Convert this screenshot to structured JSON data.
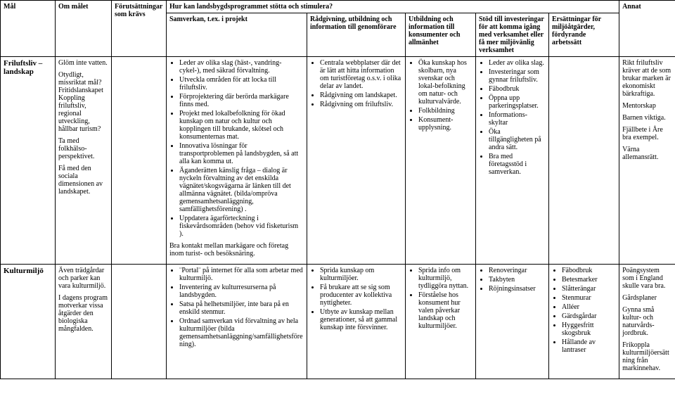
{
  "columns": {
    "c0": "Mål",
    "c1": "Om målet",
    "c2": "Förutsättningar som krävs",
    "c3_group": "Hur kan landsbygdsprogrammet stötta och stimulera?",
    "c3": "Samverkan, t.ex. i projekt",
    "c4": "Rådgivning, utbildning och information till genomförare",
    "c5": "Utbildning och information till konsumenter och allmänhet",
    "c6": "Stöd till investeringar för att komma igång med verksamhet eller få mer miljövänlig verksamhet",
    "c7": "Ersättningar för miljöåtgärder, fördyrande arbetssätt",
    "c8": "Annat"
  },
  "rows": [
    {
      "label": "Friluftsliv – landskap",
      "c1_paras": [
        "Glöm inte vatten.",
        "Otydligt, missriktat mål? Fritidslanskapet Koppling friluftsliv, regional utveckling, hållbar turism?",
        "Ta med folkhälso-perspektivet.",
        "Få med den sociala dimensionen av landskapet."
      ],
      "c2_paras": [],
      "c3_bullets": [
        "Leder av olika slag (häst-, vandring- cykel-), med säkrad förvaltning.",
        "Utveckla områden för att locka till friluftsliv.",
        "Förprojektering där berörda markägare finns med.",
        "Projekt med lokalbefolkning för ökad kunskap om natur och kultur och kopplingen till brukande, skötsel och konsumenternas mat.",
        "Innovativa lösningar för transportproblemen på landsbygden, så att alla kan komma ut.",
        "Äganderätten känslig fråga – dialog är nyckeln förvaltning av det enskilda vägnätet/skogsvägarna är länken till det allmänna vägnätet. (bilda/ompröva gemensamhetsanläggning, samfällighetsförening) .",
        "Uppdatera ägarförteckning i fiskevårdsområden (behov vid fisketurism )."
      ],
      "c3_tail": "Bra kontakt mellan markägare och företag inom turist- och besöksnäring.",
      "c4_bullets": [
        "Centrala webbplatser där det är lätt att hitta information om turistföretag o.s.v. i olika delar av landet.",
        "Rådgivning om landskapet.",
        "Rådgivning om friluftsliv."
      ],
      "c5_bullets": [
        "Öka kunskap hos skolbarn, nya svenskar och lokal-befolkning om natur- och kulturvalvärde.",
        "Folkbildning",
        "Konsument-upplysning."
      ],
      "c6_bullets": [
        "Leder av olika slag.",
        "Investeringar som gynnar friluftsliv.",
        "Fäbodbruk",
        "Öppna upp parkeringsplatser.",
        "Informations-skyltar",
        "Öka tillgängligheten på andra sätt.",
        "Bra med företagsstöd i samverkan."
      ],
      "c7_bullets": [],
      "c8_paras": [
        "Rikt friluftsliv kräver att de som brukar marken är ekonomiskt bärkraftiga.",
        "Mentorskap",
        "Barnen viktiga.",
        "Fjällbete i Åre bra exempel.",
        "Värna allemansrätt."
      ]
    },
    {
      "label": "Kulturmiljö",
      "c1_paras": [
        "Även trädgårdar och parker kan vara kulturmiljö.",
        "I dagens program motverkar vissa åtgärder den biologiska mångfalden."
      ],
      "c2_paras": [],
      "c3_bullets": [
        "¨Portal¨ på internet för alla som arbetar med kulturmiljö.",
        "Inventering av kulturresurserna på landsbygden.",
        "Satsa på helhetsmiljöer, inte bara på en enskild stenmur.",
        "Ordnad samverkan vid förvaltning av hela kulturmiljöer (bilda gemensamhetsanläggning/samfällighetsförening)."
      ],
      "c4_bullets": [
        "Sprida kunskap om kulturmiljöer.",
        "Få brukare att se sig som producenter av kollektiva nyttigheter.",
        "Utbyte av kunskap mellan generationer, så att gammal kunskap inte försvinner."
      ],
      "c5_bullets": [
        "Sprida info om kulturmiljö, tydliggöra nyttan.",
        "Förståelse hos konsument hur valen påverkar landskap och kulturmiljöer."
      ],
      "c6_bullets": [
        "Renoveringar",
        "Takbyten",
        "Röjningsinsatser"
      ],
      "c7_bullets": [
        "Fäbodbruk",
        "Betesmarker",
        "Slåtterängar",
        "Stenmurar",
        "Alléer",
        "Gärdsgårdar",
        "Hyggesfritt skogsbruk",
        "Hållande av lantraser"
      ],
      "c8_paras": [
        "Poängsystem som i England skulle vara bra.",
        "Gårdsplaner",
        "Gynna små kultur- och naturvårds-jordbruk.",
        "Frikoppla kulturmiljöersättning från markinnehav."
      ]
    }
  ],
  "widths": {
    "c0": 78,
    "c1": 80,
    "c2": 78,
    "c3": 200,
    "c4": 140,
    "c5": 100,
    "c6": 104,
    "c7": 100,
    "c8": 80
  }
}
